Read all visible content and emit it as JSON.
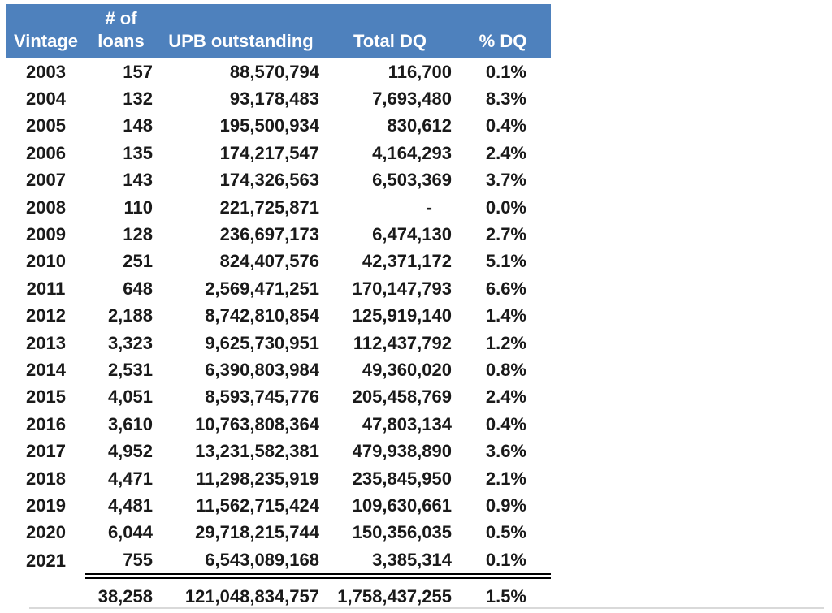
{
  "colors": {
    "header_bg": "#4e81bd",
    "header_text": "#ffffff",
    "body_text": "#1a1a1a",
    "total_separator": "#000000",
    "bottom_rule": "#d9d9d9"
  },
  "table": {
    "header": {
      "vintage": "Vintage",
      "loans": "# of\nloans",
      "upb": "UPB outstanding",
      "total_dq": "Total DQ",
      "pct_dq": "% DQ"
    },
    "rows": [
      {
        "vintage": "2003",
        "loans": "157",
        "upb": "88,570,794",
        "total_dq": "116,700",
        "pct_dq": "0.1%"
      },
      {
        "vintage": "2004",
        "loans": "132",
        "upb": "93,178,483",
        "total_dq": "7,693,480",
        "pct_dq": "8.3%"
      },
      {
        "vintage": "2005",
        "loans": "148",
        "upb": "195,500,934",
        "total_dq": "830,612",
        "pct_dq": "0.4%"
      },
      {
        "vintage": "2006",
        "loans": "135",
        "upb": "174,217,547",
        "total_dq": "4,164,293",
        "pct_dq": "2.4%"
      },
      {
        "vintage": "2007",
        "loans": "143",
        "upb": "174,326,563",
        "total_dq": "6,503,369",
        "pct_dq": "3.7%"
      },
      {
        "vintage": "2008",
        "loans": "110",
        "upb": "221,725,871",
        "total_dq": "-",
        "pct_dq": "0.0%"
      },
      {
        "vintage": "2009",
        "loans": "128",
        "upb": "236,697,173",
        "total_dq": "6,474,130",
        "pct_dq": "2.7%"
      },
      {
        "vintage": "2010",
        "loans": "251",
        "upb": "824,407,576",
        "total_dq": "42,371,172",
        "pct_dq": "5.1%"
      },
      {
        "vintage": "2011",
        "loans": "648",
        "upb": "2,569,471,251",
        "total_dq": "170,147,793",
        "pct_dq": "6.6%"
      },
      {
        "vintage": "2012",
        "loans": "2,188",
        "upb": "8,742,810,854",
        "total_dq": "125,919,140",
        "pct_dq": "1.4%"
      },
      {
        "vintage": "2013",
        "loans": "3,323",
        "upb": "9,625,730,951",
        "total_dq": "112,437,792",
        "pct_dq": "1.2%"
      },
      {
        "vintage": "2014",
        "loans": "2,531",
        "upb": "6,390,803,984",
        "total_dq": "49,360,020",
        "pct_dq": "0.8%"
      },
      {
        "vintage": "2015",
        "loans": "4,051",
        "upb": "8,593,745,776",
        "total_dq": "205,458,769",
        "pct_dq": "2.4%"
      },
      {
        "vintage": "2016",
        "loans": "3,610",
        "upb": "10,763,808,364",
        "total_dq": "47,803,134",
        "pct_dq": "0.4%"
      },
      {
        "vintage": "2017",
        "loans": "4,952",
        "upb": "13,231,582,381",
        "total_dq": "479,938,890",
        "pct_dq": "3.6%"
      },
      {
        "vintage": "2018",
        "loans": "4,471",
        "upb": "11,298,235,919",
        "total_dq": "235,845,950",
        "pct_dq": "2.1%"
      },
      {
        "vintage": "2019",
        "loans": "4,481",
        "upb": "11,562,715,424",
        "total_dq": "109,630,661",
        "pct_dq": "0.9%"
      },
      {
        "vintage": "2020",
        "loans": "6,044",
        "upb": "29,718,215,744",
        "total_dq": "150,356,035",
        "pct_dq": "0.5%"
      },
      {
        "vintage": "2021",
        "loans": "755",
        "upb": "6,543,089,168",
        "total_dq": "3,385,314",
        "pct_dq": "0.1%"
      }
    ],
    "total": {
      "vintage": "",
      "loans": "38,258",
      "upb": "121,048,834,757",
      "total_dq": "1,758,437,255",
      "pct_dq": "1.5%"
    }
  },
  "chart_data": {
    "type": "table",
    "title": "",
    "columns": [
      "Vintage",
      "# of loans",
      "UPB outstanding",
      "Total DQ",
      "% DQ"
    ],
    "rows": [
      [
        "2003",
        "157",
        "88,570,794",
        "116,700",
        "0.1%"
      ],
      [
        "2004",
        "132",
        "93,178,483",
        "7,693,480",
        "8.3%"
      ],
      [
        "2005",
        "148",
        "195,500,934",
        "830,612",
        "0.4%"
      ],
      [
        "2006",
        "135",
        "174,217,547",
        "4,164,293",
        "2.4%"
      ],
      [
        "2007",
        "143",
        "174,326,563",
        "6,503,369",
        "3.7%"
      ],
      [
        "2008",
        "110",
        "221,725,871",
        "-",
        "0.0%"
      ],
      [
        "2009",
        "128",
        "236,697,173",
        "6,474,130",
        "2.7%"
      ],
      [
        "2010",
        "251",
        "824,407,576",
        "42,371,172",
        "5.1%"
      ],
      [
        "2011",
        "648",
        "2,569,471,251",
        "170,147,793",
        "6.6%"
      ],
      [
        "2012",
        "2,188",
        "8,742,810,854",
        "125,919,140",
        "1.4%"
      ],
      [
        "2013",
        "3,323",
        "9,625,730,951",
        "112,437,792",
        "1.2%"
      ],
      [
        "2014",
        "2,531",
        "6,390,803,984",
        "49,360,020",
        "0.8%"
      ],
      [
        "2015",
        "4,051",
        "8,593,745,776",
        "205,458,769",
        "2.4%"
      ],
      [
        "2016",
        "3,610",
        "10,763,808,364",
        "47,803,134",
        "0.4%"
      ],
      [
        "2017",
        "4,952",
        "13,231,582,381",
        "479,938,890",
        "3.6%"
      ],
      [
        "2018",
        "4,471",
        "11,298,235,919",
        "235,845,950",
        "2.1%"
      ],
      [
        "2019",
        "4,481",
        "11,562,715,424",
        "109,630,661",
        "0.9%"
      ],
      [
        "2020",
        "6,044",
        "29,718,215,744",
        "150,356,035",
        "0.5%"
      ],
      [
        "2021",
        "755",
        "6,543,089,168",
        "3,385,314",
        "0.1%"
      ]
    ],
    "totals_row": [
      "",
      "38,258",
      "121,048,834,757",
      "1,758,437,255",
      "1.5%"
    ]
  }
}
